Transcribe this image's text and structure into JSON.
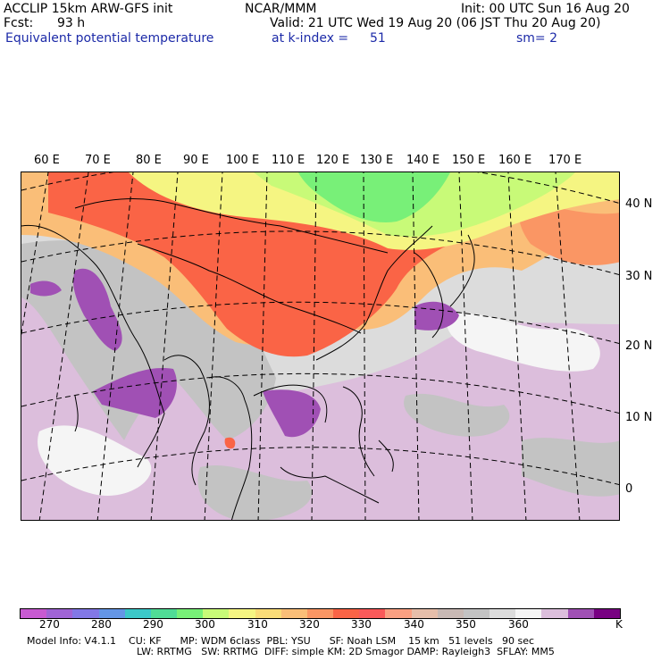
{
  "header": {
    "model_line": "ACCLIP 15km ARW-GFS init",
    "center": "NCAR/MMM",
    "init": "Init: 00 UTC Sun 16 Aug 20",
    "fcst_label": "Fcst:",
    "fcst_value": "93 h",
    "valid": "Valid: 21 UTC Wed 19 Aug 20 (06 JST Thu 20 Aug 20)",
    "field": "Equivalent potential temperature",
    "level": "at k-index =",
    "level_value": "51",
    "smoothing": "sm= 2"
  },
  "map": {
    "lon_labels": [
      "60 E",
      "70 E",
      "80 E",
      "90 E",
      "100 E",
      "110 E",
      "120 E",
      "130 E",
      "140 E",
      "150 E",
      "160 E",
      "170 E"
    ],
    "lat_labels": [
      "40 N",
      "30 N",
      "20 N",
      "10 N",
      "0"
    ]
  },
  "colorbar": {
    "unit": "K",
    "ticks": [
      "270",
      "280",
      "290",
      "300",
      "310",
      "320",
      "330",
      "340",
      "350",
      "360"
    ],
    "colors": [
      "#c85ad2",
      "#a064d6",
      "#8278e6",
      "#6496e6",
      "#3cc8c8",
      "#50dc96",
      "#78f078",
      "#c8fa78",
      "#f5f582",
      "#fadc78",
      "#fabe78",
      "#fa9664",
      "#fa6446",
      "#fa5a5a",
      "#faa082",
      "#e6beaa",
      "#c8b9b4",
      "#c3c3c3",
      "#dcdcdc",
      "#f5f5f5",
      "#dcbedc",
      "#a050b4",
      "#780082"
    ]
  },
  "footer": {
    "line1": "Model Info: V4.1.1    CU: KF      MP: WDM 6class  PBL: YSU      SF: Noah LSM    15 km   51 levels   90 sec",
    "line2": "LW: RRTMG   SW: RRTMG  DIFF: simple KM: 2D Smagor DAMP: Rayleigh3  SFLAY: MM5"
  }
}
